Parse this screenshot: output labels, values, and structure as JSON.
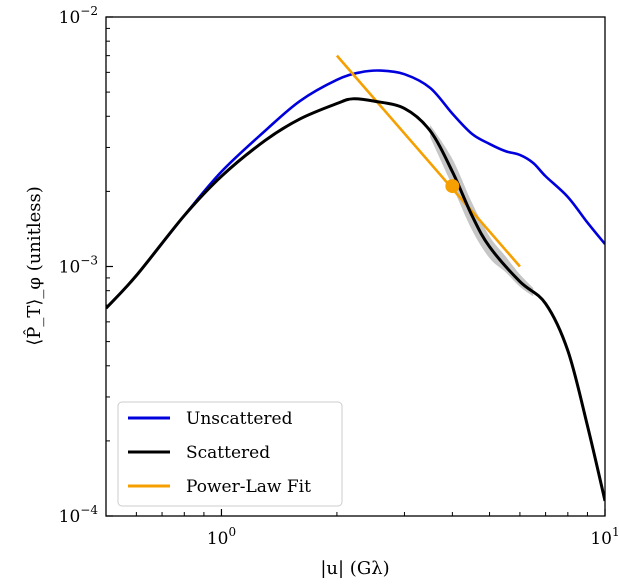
{
  "chart_data": {
    "type": "line",
    "xscale": "log",
    "yscale": "log",
    "xlim": [
      0.5,
      10
    ],
    "ylim": [
      0.0001,
      0.01
    ],
    "xlabel": "|u| (Gλ)",
    "ylabel": "⟨P̂_T⟩_φ (unitless)",
    "x_ticks": [
      {
        "value": 1,
        "label": "10^0"
      },
      {
        "value": 10,
        "label": "10^1"
      }
    ],
    "y_ticks": [
      {
        "value": 0.0001,
        "label": "10^-4"
      },
      {
        "value": 0.001,
        "label": "10^-3"
      },
      {
        "value": 0.01,
        "label": "10^-2"
      }
    ],
    "legend_position": "lower-left",
    "series": [
      {
        "name": "Unscattered",
        "color": "#0000dd",
        "style": "line",
        "x": [
          0.5,
          0.6,
          0.8,
          1.0,
          1.3,
          1.6,
          2.0,
          2.3,
          2.6,
          3.0,
          3.5,
          4.0,
          4.5,
          5.0,
          5.5,
          6.0,
          6.5,
          7.0,
          8.0,
          9.0,
          10.0
        ],
        "y": [
          0.00068,
          0.00092,
          0.0016,
          0.0024,
          0.0035,
          0.0046,
          0.0056,
          0.006,
          0.0061,
          0.0059,
          0.0052,
          0.0041,
          0.0034,
          0.0031,
          0.0029,
          0.0028,
          0.0026,
          0.0023,
          0.0019,
          0.0015,
          0.00123
        ]
      },
      {
        "name": "Scattered",
        "color": "#000000",
        "style": "line",
        "x": [
          0.5,
          0.6,
          0.8,
          1.0,
          1.3,
          1.6,
          2.0,
          2.2,
          2.5,
          3.0,
          3.5,
          4.0,
          4.5,
          5.0,
          6.0,
          7.0,
          8.0,
          9.0,
          10.0
        ],
        "y": [
          0.00068,
          0.00092,
          0.0016,
          0.0023,
          0.0032,
          0.0039,
          0.0045,
          0.0047,
          0.0046,
          0.0043,
          0.0035,
          0.0024,
          0.0016,
          0.0012,
          0.00087,
          0.00071,
          0.00046,
          0.00023,
          0.000115
        ]
      },
      {
        "name": "Scattered band",
        "color": "#c0c0c0",
        "style": "band",
        "x": [
          3.5,
          4.0,
          4.5,
          5.0,
          5.5,
          6.0,
          6.5
        ],
        "y_low": [
          0.0033,
          0.0021,
          0.0014,
          0.00108,
          0.00095,
          0.00083,
          0.00076
        ],
        "y_high": [
          0.0037,
          0.0027,
          0.0018,
          0.00132,
          0.0011,
          0.00093,
          0.00082
        ]
      },
      {
        "name": "Power-Law Fit",
        "color": "#f5a000",
        "style": "line",
        "x": [
          2.0,
          6.0
        ],
        "y": [
          0.007,
          0.001
        ]
      }
    ],
    "markers": [
      {
        "x": 4.0,
        "y": 0.0021,
        "color": "#f5a000"
      }
    ],
    "legend": [
      {
        "label": "Unscattered",
        "color": "#0000dd"
      },
      {
        "label": "Scattered",
        "color": "#000000"
      },
      {
        "label": "Power-Law Fit",
        "color": "#f5a000"
      }
    ]
  }
}
